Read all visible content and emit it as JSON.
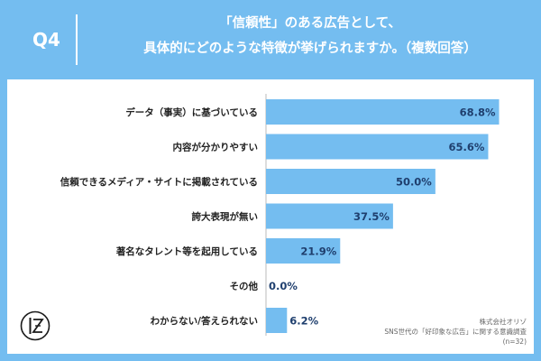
{
  "header": {
    "question_number": "Q4",
    "title_line1": "「信頼性」のある広告として、",
    "title_line2": "具体的にどのような特徴が挙げられますか。（複数回答）"
  },
  "footer": {
    "company": "株式会社オリゾ",
    "survey": "SNS世代の「好印象な広告」に関する意識調査",
    "sample": "(n=32)"
  },
  "colors": {
    "background": "#74bdf0",
    "bar": "#74bdf0",
    "value_text": "#1f3f6e"
  },
  "logo_icon": "orizo-logo-icon",
  "chart_data": {
    "type": "bar",
    "orientation": "horizontal",
    "categories": [
      "データ（事実）に基づいている",
      "内容が分かりやすい",
      "信頼できるメディア・サイトに掲載されている",
      "誇大表現が無い",
      "著名なタレント等を起用している",
      "その他",
      "わからない/答えられない"
    ],
    "values": [
      68.8,
      65.6,
      50.0,
      37.5,
      21.9,
      0.0,
      6.2
    ],
    "value_labels": [
      "68.8%",
      "65.6%",
      "50.0%",
      "37.5%",
      "21.9%",
      "0.0%",
      "6.2%"
    ],
    "xlim": [
      0,
      70
    ],
    "unit": "%",
    "grid": false,
    "legend": "none"
  }
}
